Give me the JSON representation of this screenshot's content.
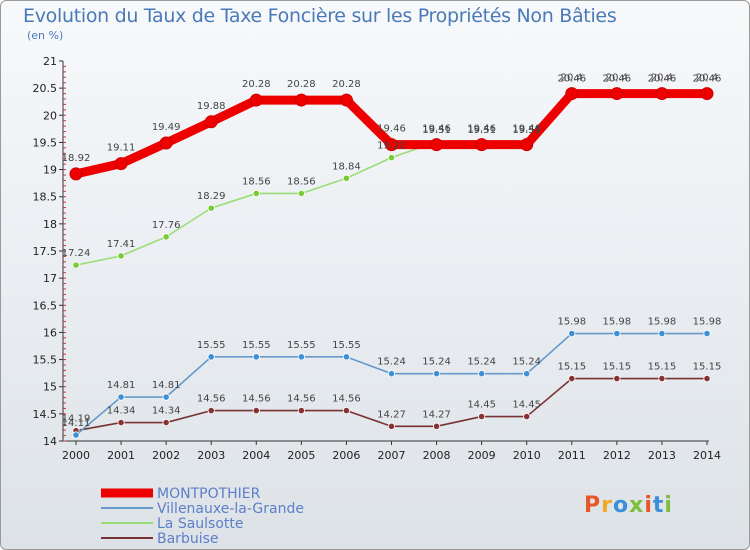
{
  "chart_data": {
    "type": "line",
    "title": "Evolution du Taux de Taxe Foncière sur les Propriétés Non Bâties",
    "ylabel": "(en %)",
    "xlabel": "",
    "ylim": [
      14,
      21
    ],
    "yticks": [
      "14",
      "14.5",
      "15",
      "15.5",
      "16",
      "16.5",
      "17",
      "17.5",
      "18",
      "18.5",
      "19",
      "19.5",
      "20",
      "20.5",
      "21"
    ],
    "categories": [
      "2000",
      "2001",
      "2002",
      "2003",
      "2004",
      "2005",
      "2006",
      "2007",
      "2008",
      "2009",
      "2010",
      "2011",
      "2012",
      "2013",
      "2014"
    ],
    "series": [
      {
        "name": "MONTPOTHIER",
        "color": "#ee0000",
        "marker": "#ee0000",
        "values": [
          18.92,
          19.11,
          19.49,
          19.88,
          20.28,
          20.28,
          20.28,
          19.46,
          19.46,
          19.46,
          19.46,
          20.4,
          20.4,
          20.4,
          20.4
        ]
      },
      {
        "name": "Villenauxe-la-Grande",
        "color": "#6699cc",
        "marker": "#3d8fd6",
        "values": [
          14.11,
          14.81,
          14.81,
          15.55,
          15.55,
          15.55,
          15.55,
          15.24,
          15.24,
          15.24,
          15.24,
          15.98,
          15.98,
          15.98,
          15.98
        ]
      },
      {
        "name": "La Saulsotte",
        "color": "#99dd77",
        "marker": "#77cc33",
        "values": [
          17.24,
          17.41,
          17.76,
          18.29,
          18.56,
          18.56,
          18.84,
          19.22,
          19.51,
          19.51,
          19.51,
          20.46,
          20.46,
          20.46,
          20.46
        ]
      },
      {
        "name": "Barbuise",
        "color": "#773333",
        "marker": "#883333",
        "values": [
          14.19,
          14.34,
          14.34,
          14.56,
          14.56,
          14.56,
          14.56,
          14.27,
          14.27,
          14.45,
          14.45,
          15.15,
          15.15,
          15.15,
          15.15
        ]
      }
    ],
    "legend_position": "bottom-left",
    "grid": false
  },
  "brand": {
    "name": "Proxiti",
    "colors": [
      "#e8562a",
      "#f5a623",
      "#3a8fd6",
      "#7bbf3a",
      "#e8562a",
      "#3a8fd6",
      "#7bbf3a"
    ]
  }
}
